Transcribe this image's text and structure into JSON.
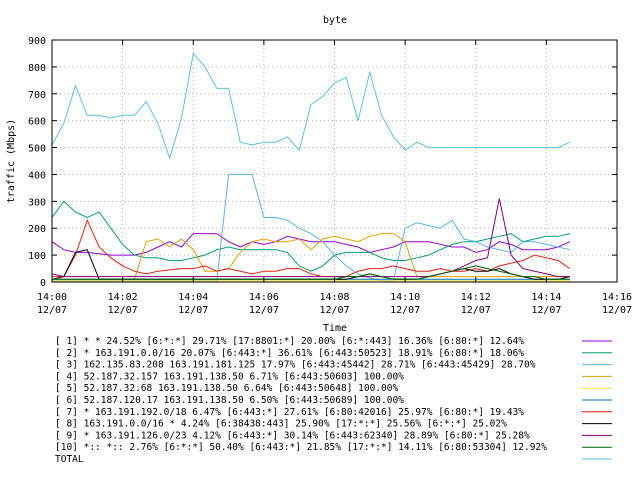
{
  "chart_data": {
    "type": "line",
    "title": "byte",
    "xlabel": "Time",
    "ylabel": "traffic (Mbps)",
    "ylim": [
      0,
      900
    ],
    "xlim": [
      "14:00",
      "14:16"
    ],
    "yticks": [
      0,
      100,
      200,
      300,
      400,
      500,
      600,
      700,
      800,
      900
    ],
    "xticks": [
      {
        "time": "14:00",
        "date": "12/07"
      },
      {
        "time": "14:02",
        "date": "12/07"
      },
      {
        "time": "14:04",
        "date": "12/07"
      },
      {
        "time": "14:06",
        "date": "12/07"
      },
      {
        "time": "14:08",
        "date": "12/07"
      },
      {
        "time": "14:10",
        "date": "12/07"
      },
      {
        "time": "14:12",
        "date": "12/07"
      },
      {
        "time": "14:14",
        "date": "12/07"
      },
      {
        "time": "14:16",
        "date": "12/07"
      }
    ],
    "grid": true,
    "legend_position": "bottom",
    "x": [
      "14:00:00",
      "14:00:20",
      "14:00:40",
      "14:01:00",
      "14:01:20",
      "14:01:40",
      "14:02:00",
      "14:02:20",
      "14:02:40",
      "14:03:00",
      "14:03:20",
      "14:03:40",
      "14:04:00",
      "14:04:20",
      "14:04:40",
      "14:05:00",
      "14:05:20",
      "14:05:40",
      "14:06:00",
      "14:06:20",
      "14:06:40",
      "14:07:00",
      "14:07:20",
      "14:07:40",
      "14:08:00",
      "14:08:20",
      "14:08:40",
      "14:09:00",
      "14:09:20",
      "14:09:40",
      "14:10:00",
      "14:10:20",
      "14:10:40",
      "14:11:00",
      "14:11:20",
      "14:11:40",
      "14:12:00",
      "14:12:20",
      "14:12:40",
      "14:13:00",
      "14:13:20",
      "14:13:40",
      "14:14:00",
      "14:14:20",
      "14:14:40"
    ],
    "series": [
      {
        "name": "[ 1] * * 24.52%  [6:*:*] 29.71% [17:8801:*] 20.00% [6:*:443] 16.36% [6:80:*] 12.64%",
        "color": "#9400d3",
        "values": [
          150,
          120,
          110,
          110,
          105,
          100,
          100,
          100,
          110,
          130,
          150,
          130,
          180,
          180,
          180,
          150,
          130,
          150,
          140,
          150,
          170,
          160,
          150,
          150,
          150,
          140,
          130,
          110,
          120,
          130,
          150,
          150,
          150,
          140,
          130,
          130,
          110,
          120,
          150,
          140,
          120,
          120,
          120,
          130,
          150
        ]
      },
      {
        "name": "[ 2] * 163.191.0.0/16 20.07%  [6:443:*] 36.61% [6:443:50523] 18.91% [6:80:*] 18.06%",
        "color": "#009e73",
        "values": [
          240,
          300,
          260,
          240,
          260,
          200,
          140,
          100,
          90,
          90,
          80,
          80,
          90,
          100,
          120,
          130,
          120,
          120,
          120,
          120,
          110,
          60,
          40,
          60,
          100,
          110,
          110,
          110,
          90,
          80,
          80,
          90,
          100,
          120,
          140,
          150,
          150,
          160,
          170,
          180,
          150,
          160,
          170,
          170,
          180
        ]
      },
      {
        "name": "[ 3] 162.135.83.208 163.191.181.125 17.97%  [6:443:45442] 28.71% [6:443:45429] 28.70%",
        "color": "#56b4e9",
        "values": [
          5,
          5,
          5,
          5,
          5,
          5,
          5,
          5,
          5,
          5,
          5,
          5,
          5,
          5,
          5,
          400,
          400,
          400,
          240,
          240,
          230,
          200,
          180,
          150,
          100,
          60,
          30,
          15,
          5,
          5,
          200,
          220,
          210,
          200,
          230,
          160,
          150,
          130,
          120,
          110,
          150,
          150,
          140,
          130,
          120
        ]
      },
      {
        "name": "[ 4] 52.187.32.157 163.191.138.50 6.71%  [6:443:50603] 100.00%",
        "color": "#e69f00",
        "values": [
          10,
          10,
          10,
          10,
          10,
          10,
          10,
          10,
          150,
          160,
          130,
          160,
          120,
          40,
          40,
          50,
          110,
          150,
          160,
          150,
          150,
          160,
          120,
          160,
          170,
          160,
          150,
          170,
          180,
          180,
          150,
          20,
          20,
          20,
          20,
          20,
          20,
          20,
          20,
          20,
          20,
          20,
          20,
          20,
          20
        ]
      },
      {
        "name": "[ 5] 52.187.32.68 163.191.138.50 6.64%  [6:443:50648] 100.00%",
        "color": "#f0e442",
        "values": [
          5,
          5,
          5,
          5,
          5,
          5,
          5,
          5,
          5,
          5,
          5,
          5,
          5,
          5,
          5,
          5,
          5,
          5,
          5,
          5,
          5,
          5,
          5,
          5,
          5,
          5,
          5,
          5,
          5,
          5,
          5,
          5,
          5,
          5,
          5,
          5,
          5,
          5,
          5,
          5,
          5,
          5,
          5,
          5,
          5
        ]
      },
      {
        "name": "[ 6] 52.187.120.17 163.191.138.50 6.50%  [6:443:50689] 100.00%",
        "color": "#0072b2",
        "values": [
          10,
          10,
          10,
          10,
          10,
          10,
          10,
          10,
          10,
          10,
          10,
          10,
          10,
          10,
          10,
          10,
          10,
          10,
          10,
          10,
          10,
          10,
          10,
          10,
          10,
          10,
          10,
          10,
          10,
          10,
          10,
          10,
          10,
          10,
          10,
          10,
          10,
          10,
          10,
          10,
          10,
          10,
          10,
          10,
          10
        ]
      },
      {
        "name": "[ 7] * 163.191.192.0/18 6.47%  [6:443:*] 27.61% [6:80:42016] 25.97% [6:80:*] 19.43%",
        "color": "#e51e10",
        "values": [
          20,
          20,
          100,
          230,
          130,
          90,
          60,
          40,
          30,
          40,
          45,
          50,
          50,
          60,
          40,
          50,
          40,
          30,
          40,
          40,
          50,
          50,
          30,
          20,
          20,
          20,
          40,
          50,
          50,
          60,
          50,
          40,
          40,
          50,
          40,
          40,
          50,
          40,
          60,
          70,
          80,
          100,
          90,
          80,
          50
        ]
      },
      {
        "name": "[ 8] 163.191.0.0/16 * 4.24%  [6:38438:443] 25.90% [17:*:*] 25.56% [6:*:*] 25.02%",
        "color": "#000000",
        "values": [
          10,
          20,
          110,
          120,
          10,
          10,
          10,
          10,
          10,
          10,
          10,
          10,
          10,
          10,
          10,
          10,
          10,
          10,
          10,
          10,
          10,
          10,
          10,
          10,
          10,
          10,
          20,
          30,
          20,
          10,
          10,
          10,
          20,
          30,
          40,
          50,
          40,
          40,
          50,
          30,
          20,
          10,
          10,
          10,
          20
        ]
      },
      {
        "name": "[ 9] * 163.191.126.0/23 4.12%  [6:443:*] 30.14% [6:443:62340] 28.89% [6:80:*] 25.28%",
        "color": "#800080",
        "values": [
          30,
          20,
          20,
          20,
          20,
          20,
          20,
          20,
          20,
          20,
          20,
          20,
          20,
          20,
          20,
          20,
          20,
          20,
          20,
          20,
          20,
          20,
          20,
          20,
          20,
          20,
          20,
          20,
          20,
          20,
          20,
          20,
          20,
          30,
          40,
          60,
          80,
          90,
          310,
          100,
          50,
          40,
          30,
          20,
          20
        ]
      },
      {
        "name": "[10] *:: *:: 2.76%  [6:*:*] 50.40% [6:443:*] 21.85% [17:*:*] 14.11% [6:80:53304] 12.92%",
        "color": "#006400",
        "values": [
          10,
          10,
          10,
          10,
          10,
          10,
          10,
          10,
          10,
          10,
          10,
          10,
          10,
          10,
          10,
          10,
          10,
          10,
          10,
          10,
          10,
          10,
          10,
          10,
          10,
          20,
          20,
          30,
          20,
          10,
          10,
          10,
          20,
          30,
          40,
          50,
          60,
          50,
          40,
          30,
          20,
          20,
          10,
          10,
          10
        ]
      },
      {
        "name": "TOTAL",
        "color": "#5bc0de",
        "values": [
          510,
          590,
          730,
          620,
          620,
          610,
          620,
          620,
          670,
          590,
          460,
          610,
          850,
          800,
          720,
          720,
          520,
          510,
          520,
          520,
          540,
          490,
          660,
          690,
          740,
          760,
          600,
          780,
          620,
          540,
          490,
          520,
          500,
          500,
          500,
          500,
          500,
          500,
          500,
          500,
          500,
          500,
          500,
          500,
          520
        ]
      }
    ]
  }
}
